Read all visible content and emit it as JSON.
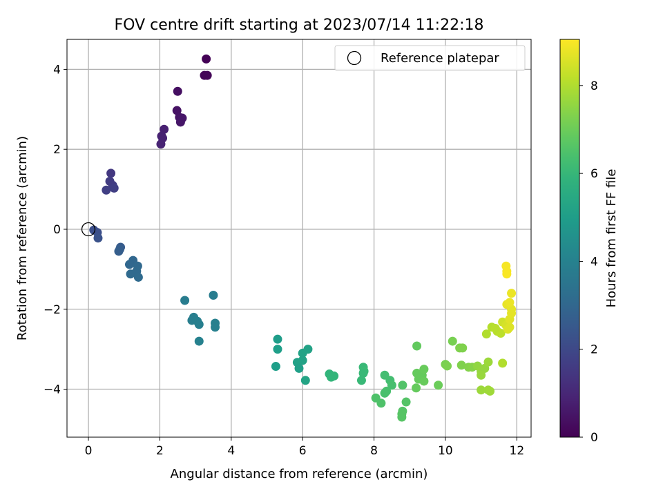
{
  "chart_data": {
    "type": "scatter",
    "title": "FOV centre drift starting at 2023/07/14 11:22:18",
    "xlabel": "Angular distance from reference (arcmin)",
    "ylabel": "Rotation from reference (arcmin)",
    "xlim": [
      -0.6,
      12.4
    ],
    "ylim": [
      -5.2,
      4.75
    ],
    "xticks": [
      0,
      2,
      4,
      6,
      8,
      10,
      12
    ],
    "yticks": [
      -4,
      -2,
      0,
      2,
      4
    ],
    "xtick_labels": [
      "0",
      "2",
      "4",
      "6",
      "8",
      "10",
      "12"
    ],
    "ytick_labels": [
      "−4",
      "−2",
      "0",
      "2",
      "4"
    ],
    "grid": true,
    "legend": {
      "position": "top-right",
      "label": "Reference platepar"
    },
    "reference_point": {
      "x": 0,
      "y": 0
    },
    "colorbar": {
      "label": "Hours from first FF file",
      "colormap": "viridis",
      "range": [
        0,
        9.05
      ],
      "ticks": [
        0,
        2,
        4,
        6,
        8
      ],
      "tick_labels": [
        "0",
        "2",
        "4",
        "6",
        "8"
      ]
    },
    "series": [
      {
        "points": [
          {
            "x": 3.3,
            "y": 4.26,
            "c": 0.05
          },
          {
            "x": 3.25,
            "y": 3.85,
            "c": 0.1
          },
          {
            "x": 3.33,
            "y": 3.85,
            "c": 0.12
          },
          {
            "x": 2.5,
            "y": 3.45,
            "c": 0.35
          },
          {
            "x": 2.48,
            "y": 2.97,
            "c": 0.45
          },
          {
            "x": 2.55,
            "y": 2.8,
            "c": 0.5
          },
          {
            "x": 2.63,
            "y": 2.78,
            "c": 0.55
          },
          {
            "x": 2.58,
            "y": 2.68,
            "c": 0.55
          },
          {
            "x": 2.12,
            "y": 2.5,
            "c": 0.8
          },
          {
            "x": 2.05,
            "y": 2.33,
            "c": 0.85
          },
          {
            "x": 2.08,
            "y": 2.28,
            "c": 0.85
          },
          {
            "x": 2.03,
            "y": 2.13,
            "c": 0.9
          },
          {
            "x": 0.63,
            "y": 1.4,
            "c": 1.5
          },
          {
            "x": 0.6,
            "y": 1.2,
            "c": 1.6
          },
          {
            "x": 0.68,
            "y": 1.1,
            "c": 1.6
          },
          {
            "x": 0.72,
            "y": 1.03,
            "c": 1.7
          },
          {
            "x": 0.5,
            "y": 0.98,
            "c": 1.7
          },
          {
            "x": 0.15,
            "y": -0.02,
            "c": 2.2
          },
          {
            "x": 0.25,
            "y": -0.08,
            "c": 2.2
          },
          {
            "x": 0.27,
            "y": -0.22,
            "c": 2.3
          },
          {
            "x": 0.9,
            "y": -0.45,
            "c": 2.6
          },
          {
            "x": 0.88,
            "y": -0.5,
            "c": 2.65
          },
          {
            "x": 0.85,
            "y": -0.55,
            "c": 2.7
          },
          {
            "x": 1.25,
            "y": -0.78,
            "c": 3.0
          },
          {
            "x": 1.15,
            "y": -0.88,
            "c": 3.0
          },
          {
            "x": 1.38,
            "y": -0.92,
            "c": 3.05
          },
          {
            "x": 1.35,
            "y": -1.05,
            "c": 3.1
          },
          {
            "x": 1.18,
            "y": -1.12,
            "c": 3.1
          },
          {
            "x": 1.4,
            "y": -1.2,
            "c": 3.15
          },
          {
            "x": 2.7,
            "y": -1.78,
            "c": 3.8
          },
          {
            "x": 3.5,
            "y": -1.65,
            "c": 3.8
          },
          {
            "x": 2.95,
            "y": -2.2,
            "c": 3.85
          },
          {
            "x": 2.9,
            "y": -2.28,
            "c": 3.85
          },
          {
            "x": 3.05,
            "y": -2.3,
            "c": 3.9
          },
          {
            "x": 3.1,
            "y": -2.38,
            "c": 3.9
          },
          {
            "x": 3.55,
            "y": -2.35,
            "c": 3.95
          },
          {
            "x": 3.55,
            "y": -2.45,
            "c": 3.95
          },
          {
            "x": 3.1,
            "y": -2.8,
            "c": 4.0
          },
          {
            "x": 5.3,
            "y": -2.75,
            "c": 5.0
          },
          {
            "x": 5.3,
            "y": -3.0,
            "c": 5.05
          },
          {
            "x": 5.25,
            "y": -3.43,
            "c": 5.05
          },
          {
            "x": 6.15,
            "y": -3.0,
            "c": 5.2
          },
          {
            "x": 6.0,
            "y": -3.1,
            "c": 5.2
          },
          {
            "x": 5.85,
            "y": -3.33,
            "c": 5.15
          },
          {
            "x": 6.0,
            "y": -3.28,
            "c": 5.2
          },
          {
            "x": 5.9,
            "y": -3.48,
            "c": 5.1
          },
          {
            "x": 6.08,
            "y": -3.78,
            "c": 5.25
          },
          {
            "x": 6.75,
            "y": -3.62,
            "c": 5.9
          },
          {
            "x": 6.8,
            "y": -3.7,
            "c": 5.95
          },
          {
            "x": 6.88,
            "y": -3.67,
            "c": 5.95
          },
          {
            "x": 7.7,
            "y": -3.45,
            "c": 6.1
          },
          {
            "x": 7.72,
            "y": -3.55,
            "c": 6.15
          },
          {
            "x": 7.7,
            "y": -3.6,
            "c": 6.1
          },
          {
            "x": 7.65,
            "y": -3.78,
            "c": 6.1
          },
          {
            "x": 8.3,
            "y": -3.65,
            "c": 6.3
          },
          {
            "x": 8.45,
            "y": -3.78,
            "c": 6.3
          },
          {
            "x": 8.5,
            "y": -3.9,
            "c": 6.35
          },
          {
            "x": 8.35,
            "y": -4.05,
            "c": 6.4
          },
          {
            "x": 8.3,
            "y": -4.1,
            "c": 6.4
          },
          {
            "x": 8.05,
            "y": -4.22,
            "c": 6.5
          },
          {
            "x": 8.2,
            "y": -4.35,
            "c": 6.5
          },
          {
            "x": 8.8,
            "y": -3.9,
            "c": 6.55
          },
          {
            "x": 8.9,
            "y": -4.32,
            "c": 6.6
          },
          {
            "x": 8.8,
            "y": -4.55,
            "c": 6.6
          },
          {
            "x": 8.78,
            "y": -4.62,
            "c": 6.65
          },
          {
            "x": 8.78,
            "y": -4.7,
            "c": 6.65
          },
          {
            "x": 9.2,
            "y": -2.92,
            "c": 6.85
          },
          {
            "x": 9.2,
            "y": -3.6,
            "c": 6.9
          },
          {
            "x": 9.35,
            "y": -3.65,
            "c": 6.9
          },
          {
            "x": 9.4,
            "y": -3.5,
            "c": 6.95
          },
          {
            "x": 9.25,
            "y": -3.75,
            "c": 6.9
          },
          {
            "x": 9.4,
            "y": -3.8,
            "c": 6.95
          },
          {
            "x": 9.18,
            "y": -3.97,
            "c": 6.9
          },
          {
            "x": 9.8,
            "y": -3.9,
            "c": 7.0
          },
          {
            "x": 10.2,
            "y": -2.8,
            "c": 7.2
          },
          {
            "x": 10.4,
            "y": -2.97,
            "c": 7.3
          },
          {
            "x": 10.48,
            "y": -2.97,
            "c": 7.3
          },
          {
            "x": 10.0,
            "y": -3.38,
            "c": 7.2
          },
          {
            "x": 10.05,
            "y": -3.42,
            "c": 7.25
          },
          {
            "x": 10.45,
            "y": -3.4,
            "c": 7.3
          },
          {
            "x": 10.65,
            "y": -3.45,
            "c": 7.35
          },
          {
            "x": 10.75,
            "y": -3.45,
            "c": 7.4
          },
          {
            "x": 10.9,
            "y": -3.42,
            "c": 7.55
          },
          {
            "x": 11.1,
            "y": -3.48,
            "c": 7.6
          },
          {
            "x": 11.0,
            "y": -3.55,
            "c": 7.6
          },
          {
            "x": 11.0,
            "y": -3.65,
            "c": 7.65
          },
          {
            "x": 11.2,
            "y": -3.32,
            "c": 7.7
          },
          {
            "x": 11.0,
            "y": -4.02,
            "c": 7.7
          },
          {
            "x": 11.2,
            "y": -4.02,
            "c": 7.75
          },
          {
            "x": 11.25,
            "y": -4.05,
            "c": 7.75
          },
          {
            "x": 11.6,
            "y": -3.35,
            "c": 8.0
          },
          {
            "x": 11.15,
            "y": -2.62,
            "c": 8.0
          },
          {
            "x": 11.3,
            "y": -2.45,
            "c": 8.05
          },
          {
            "x": 11.45,
            "y": -2.55,
            "c": 8.1
          },
          {
            "x": 11.55,
            "y": -2.6,
            "c": 8.15
          },
          {
            "x": 11.4,
            "y": -2.48,
            "c": 8.1
          },
          {
            "x": 11.6,
            "y": -2.32,
            "c": 8.4
          },
          {
            "x": 11.7,
            "y": -2.4,
            "c": 8.5
          },
          {
            "x": 11.75,
            "y": -2.5,
            "c": 8.6
          },
          {
            "x": 11.8,
            "y": -2.45,
            "c": 8.6
          },
          {
            "x": 11.8,
            "y": -2.25,
            "c": 8.65
          },
          {
            "x": 11.85,
            "y": -2.1,
            "c": 8.7
          },
          {
            "x": 11.85,
            "y": -2.0,
            "c": 8.7
          },
          {
            "x": 11.72,
            "y": -1.88,
            "c": 8.75
          },
          {
            "x": 11.8,
            "y": -1.83,
            "c": 8.8
          },
          {
            "x": 11.85,
            "y": -1.6,
            "c": 8.8
          },
          {
            "x": 11.7,
            "y": -0.92,
            "c": 8.95
          },
          {
            "x": 11.72,
            "y": -1.05,
            "c": 8.95
          },
          {
            "x": 11.72,
            "y": -1.12,
            "c": 9.0
          }
        ]
      }
    ]
  }
}
